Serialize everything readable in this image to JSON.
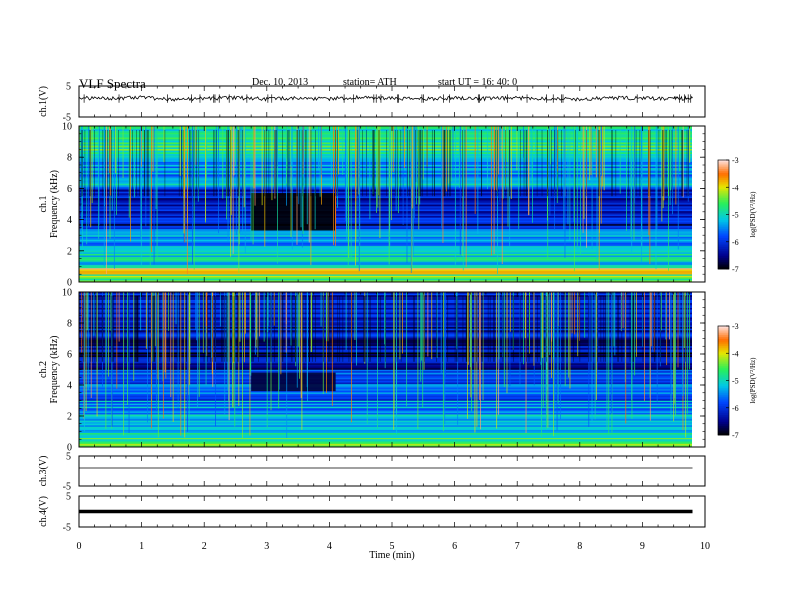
{
  "header": {
    "title": "VLF Spectra",
    "date": "Dec. 10, 2013",
    "station": "station= ATH",
    "start": "start  UT =   16: 40: 0"
  },
  "chart_data": [
    {
      "type": "line",
      "ylabel": "ch.1(V)",
      "ylim": [
        -5,
        5
      ],
      "yticks": [
        "5",
        "-5"
      ],
      "x": [
        0,
        0.5,
        1,
        1.5,
        2,
        2.5,
        3,
        3.5,
        4,
        4.5,
        5,
        5.5,
        6,
        6.5,
        7,
        7.5,
        8,
        8.5,
        9,
        9.5,
        9.8
      ],
      "values": [
        1.1,
        0.9,
        1.3,
        0.7,
        1.0,
        1.2,
        0.8,
        1.1,
        0.9,
        1.3,
        1.0,
        0.8,
        1.2,
        0.9,
        1.1,
        1.0,
        0.7,
        1.2,
        1.0,
        0.9,
        1.1
      ]
    },
    {
      "type": "heatmap",
      "ylabel": "Frequency  (kHz)",
      "channel_label": "ch.1",
      "ylim": [
        0,
        10
      ],
      "yticks": [
        "0",
        "2",
        "4",
        "6",
        "8",
        "10"
      ],
      "colorbar": {
        "label": "log(PSD(V²/Hz)",
        "ticks": [
          "-3",
          "-4",
          "-5",
          "-6",
          "-7"
        ],
        "range": [
          -7,
          -3
        ]
      },
      "bands": [
        {
          "f": [
            0.0,
            0.5
          ],
          "log_psd": -4.5
        },
        {
          "f": [
            0.5,
            0.9
          ],
          "log_psd": -3.4
        },
        {
          "f": [
            0.9,
            2.0
          ],
          "log_psd": -5.0
        },
        {
          "f": [
            2.0,
            3.5
          ],
          "log_psd": -5.6
        },
        {
          "f": [
            3.5,
            6.0
          ],
          "log_psd": -6.3
        },
        {
          "f": [
            6.0,
            8.0
          ],
          "log_psd": -5.4
        },
        {
          "f": [
            8.0,
            10.0
          ],
          "log_psd": -4.8
        }
      ],
      "quiet_interval": {
        "t": [
          2.75,
          4.1
        ],
        "f": [
          3.3,
          5.7
        ],
        "log_psd": -7.0
      }
    },
    {
      "type": "heatmap",
      "ylabel": "Frequency  (kHz)",
      "channel_label": "ch.2",
      "ylim": [
        0,
        10
      ],
      "yticks": [
        "0",
        "2",
        "4",
        "6",
        "8",
        "10"
      ],
      "colorbar": {
        "label": "log(PSD(V²/Hz)",
        "ticks": [
          "-3",
          "-4",
          "-5",
          "-6",
          "-7"
        ],
        "range": [
          -7,
          -3
        ]
      },
      "bands": [
        {
          "f": [
            0.0,
            0.6
          ],
          "log_psd": -4.6
        },
        {
          "f": [
            0.6,
            2.0
          ],
          "log_psd": -5.0
        },
        {
          "f": [
            2.0,
            3.0
          ],
          "log_psd": -5.4
        },
        {
          "f": [
            3.0,
            5.0
          ],
          "log_psd": -5.8
        },
        {
          "f": [
            5.0,
            6.3
          ],
          "log_psd": -6.5
        },
        {
          "f": [
            6.3,
            10.0
          ],
          "log_psd": -6.3
        }
      ],
      "quiet_interval": {
        "t": [
          2.75,
          4.1
        ],
        "f": [
          3.6,
          4.8
        ],
        "log_psd": -6.8
      }
    },
    {
      "type": "line",
      "ylabel": "ch.3(V)",
      "ylim": [
        -5,
        5
      ],
      "yticks": [
        "5",
        "-5"
      ],
      "x": [
        0,
        9.8
      ],
      "values": [
        1.0,
        1.0
      ]
    },
    {
      "type": "line",
      "ylabel": "ch.4(V)",
      "ylim": [
        -5,
        5
      ],
      "yticks": [
        "5",
        "-5"
      ],
      "x": [
        0,
        9.8
      ],
      "values": [
        0.0,
        0.0
      ]
    }
  ],
  "xaxis": {
    "label": "Time  (min)",
    "ticks": [
      "0",
      "1",
      "2",
      "3",
      "4",
      "5",
      "6",
      "7",
      "8",
      "9",
      "10"
    ],
    "xlim": [
      0,
      10
    ]
  }
}
